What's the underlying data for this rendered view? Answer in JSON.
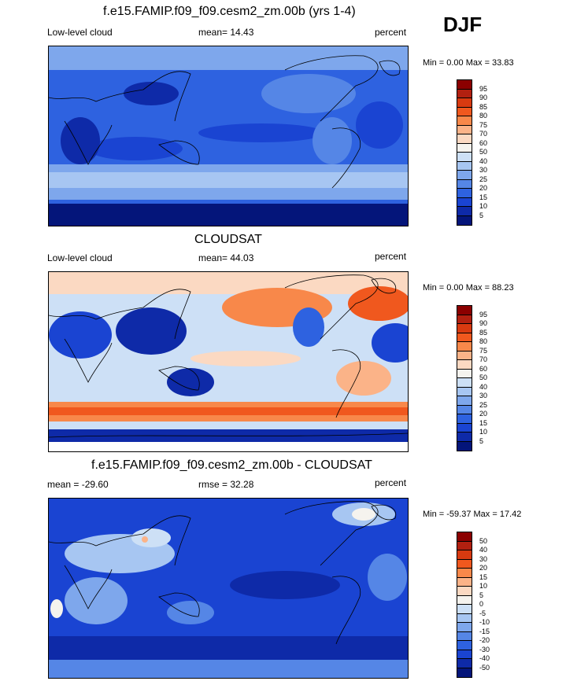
{
  "season": "DJF",
  "panels": [
    {
      "title": "f.e15.FAMIP.f09_f09.cesm2_zm.00b (yrs 1-4)",
      "left_label": "Low-level cloud",
      "center_label": "mean=  14.43",
      "right_label": "percent",
      "minmax": "Min =   0.00 Max =  33.83",
      "mean": 14.43,
      "min": 0.0,
      "max": 33.83,
      "levels": [
        "95",
        "90",
        "85",
        "80",
        "75",
        "70",
        "60",
        "50",
        "40",
        "30",
        "25",
        "20",
        "15",
        "10",
        "5"
      ],
      "colors": [
        "#8b0000",
        "#b22010",
        "#d83a10",
        "#f0581e",
        "#f8884a",
        "#fbb388",
        "#fbd9c2",
        "#f5f3ee",
        "#cde0f6",
        "#a7c6f2",
        "#7ea7ec",
        "#5586e6",
        "#2e62e0",
        "#1a44d2",
        "#0e2aa8",
        "#04157a"
      ]
    },
    {
      "title": "CLOUDSAT",
      "left_label": "Low-level cloud",
      "center_label": "mean=  44.03",
      "right_label": "percent",
      "minmax": "Min =   0.00 Max =  88.23",
      "mean": 44.03,
      "min": 0.0,
      "max": 88.23,
      "levels": [
        "95",
        "90",
        "85",
        "80",
        "75",
        "70",
        "60",
        "50",
        "40",
        "30",
        "25",
        "20",
        "15",
        "10",
        "5"
      ],
      "colors": [
        "#8b0000",
        "#b22010",
        "#d83a10",
        "#f0581e",
        "#f8884a",
        "#fbb388",
        "#fbd9c2",
        "#f5f3ee",
        "#cde0f6",
        "#a7c6f2",
        "#7ea7ec",
        "#5586e6",
        "#2e62e0",
        "#1a44d2",
        "#0e2aa8",
        "#04157a"
      ]
    },
    {
      "title": "f.e15.FAMIP.f09_f09.cesm2_zm.00b - CLOUDSAT",
      "left_label": "mean = -29.60",
      "center_label": "rmse =  32.28",
      "right_label": "percent",
      "minmax": "Min = -59.37 Max =  17.42",
      "mean": -29.6,
      "rmse": 32.28,
      "min": -59.37,
      "max": 17.42,
      "levels": [
        "50",
        "40",
        "30",
        "20",
        "15",
        "10",
        "5",
        "0",
        "-5",
        "-10",
        "-15",
        "-20",
        "-30",
        "-40",
        "-50"
      ],
      "colors": [
        "#8b0000",
        "#b22010",
        "#d83a10",
        "#f0581e",
        "#f8884a",
        "#fbb388",
        "#fbd9c2",
        "#f5f3ee",
        "#cde0f6",
        "#a7c6f2",
        "#7ea7ec",
        "#5586e6",
        "#2e62e0",
        "#1a44d2",
        "#0e2aa8",
        "#04157a"
      ]
    }
  ]
}
